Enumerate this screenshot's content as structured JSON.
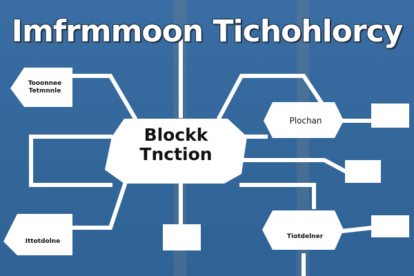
{
  "title": "Imfrmmoon Tichohlorcy",
  "hub": {
    "line1": "Blockk",
    "line2": "Tnction"
  },
  "nodes": {
    "top_left": {
      "line1": "Tooonnee",
      "line2": "Tetmnnle"
    },
    "right_middle": {
      "label": "Plochan"
    },
    "bottom_left": {
      "label": "Ittotdolne"
    },
    "bottom_right": {
      "label": "Tiotdelner"
    }
  },
  "colors": {
    "background": "#336699",
    "node_fill": "#ffffff",
    "connector": "#ffffff"
  }
}
